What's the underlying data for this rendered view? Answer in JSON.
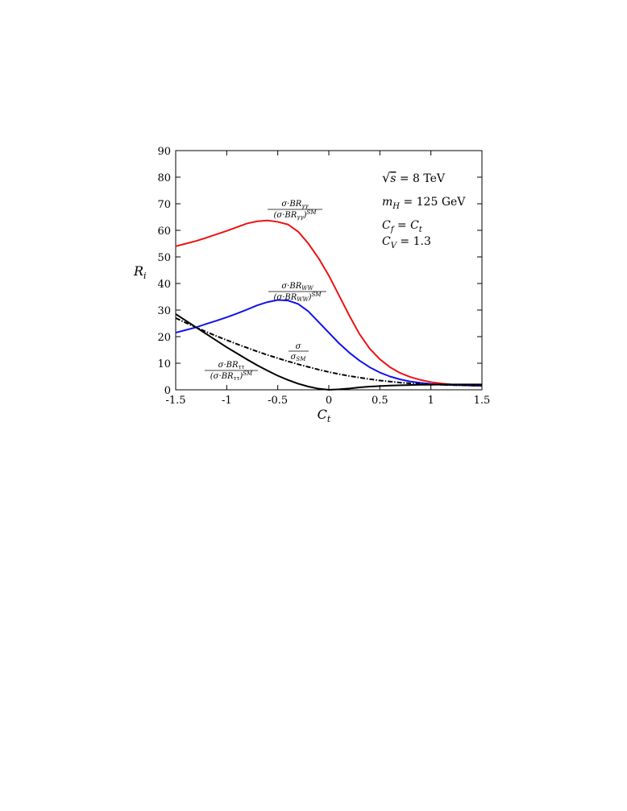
{
  "chart_data": {
    "type": "line",
    "title": "",
    "xlabel": "C_t",
    "ylabel": "R_i",
    "xlim": [
      -1.5,
      1.5
    ],
    "ylim": [
      0,
      90
    ],
    "x_ticks": [
      "-1.5",
      "-1",
      "-0.5",
      "0",
      "0.5",
      "1",
      "1.5"
    ],
    "y_ticks": [
      "0",
      "10",
      "20",
      "30",
      "40",
      "50",
      "60",
      "70",
      "80",
      "90"
    ],
    "grid": false,
    "annotations": [
      "√s = 8 TeV",
      "m_H = 125 GeV",
      "C_f = C_t",
      "C_V = 1.3"
    ],
    "series": [
      {
        "name": "σ·BR_γγ / (σ·BR_γγ)^SM",
        "color": "#ee1111",
        "style": "solid",
        "x": [
          -1.5,
          -1.4,
          -1.3,
          -1.2,
          -1.1,
          -1.0,
          -0.9,
          -0.8,
          -0.7,
          -0.6,
          -0.5,
          -0.4,
          -0.3,
          -0.2,
          -0.1,
          0.0,
          0.1,
          0.2,
          0.3,
          0.4,
          0.5,
          0.6,
          0.7,
          0.8,
          0.9,
          1.0,
          1.1,
          1.2,
          1.3,
          1.4,
          1.5
        ],
        "values": [
          54,
          55,
          56,
          57.2,
          58.5,
          59.8,
          61.2,
          62.6,
          63.4,
          63.7,
          63.2,
          62.2,
          59.5,
          55,
          49.5,
          43,
          35.5,
          28,
          21,
          15.5,
          11.5,
          8.5,
          6.3,
          4.8,
          3.7,
          2.9,
          2.4,
          2.0,
          1.8,
          1.6,
          1.5
        ]
      },
      {
        "name": "σ·BR_WW / (σ·BR_WW)^SM",
        "color": "#1111ee",
        "style": "solid",
        "x": [
          -1.5,
          -1.4,
          -1.3,
          -1.2,
          -1.1,
          -1.0,
          -0.9,
          -0.8,
          -0.7,
          -0.6,
          -0.5,
          -0.4,
          -0.3,
          -0.2,
          -0.1,
          0.0,
          0.1,
          0.2,
          0.3,
          0.4,
          0.5,
          0.6,
          0.7,
          0.8,
          0.9,
          1.0,
          1.1,
          1.2,
          1.3,
          1.4,
          1.5
        ],
        "values": [
          21.5,
          22.5,
          23.5,
          24.8,
          26,
          27.3,
          28.7,
          30.2,
          31.8,
          33,
          33.8,
          33.6,
          32.3,
          29.5,
          25.5,
          21.5,
          17.5,
          14,
          11,
          8.5,
          6.5,
          5.0,
          3.9,
          3.1,
          2.6,
          2.2,
          1.9,
          1.8,
          1.7,
          1.6,
          1.5
        ]
      },
      {
        "name": "σ / σ_SM",
        "color": "#000000",
        "style": "dashdot",
        "x": [
          -1.5,
          -1.4,
          -1.3,
          -1.2,
          -1.1,
          -1.0,
          -0.9,
          -0.8,
          -0.7,
          -0.6,
          -0.5,
          -0.4,
          -0.3,
          -0.2,
          -0.1,
          0.0,
          0.1,
          0.2,
          0.3,
          0.4,
          0.5,
          0.6,
          0.7,
          0.8,
          0.9,
          1.0,
          1.1,
          1.2,
          1.3,
          1.4,
          1.5
        ],
        "values": [
          27,
          25.2,
          23.5,
          21.8,
          20.2,
          18.7,
          17.2,
          15.8,
          14.4,
          13.1,
          11.9,
          10.7,
          9.6,
          8.6,
          7.6,
          6.7,
          5.9,
          5.2,
          4.6,
          4.0,
          3.5,
          3.1,
          2.7,
          2.4,
          2.2,
          2.0,
          1.9,
          1.8,
          1.7,
          1.65,
          1.6
        ]
      },
      {
        "name": "σ·BR_ττ / (σ·BR_ττ)^SM",
        "color": "#000000",
        "style": "solid",
        "x": [
          -1.5,
          -1.4,
          -1.3,
          -1.2,
          -1.1,
          -1.0,
          -0.9,
          -0.8,
          -0.7,
          -0.6,
          -0.5,
          -0.4,
          -0.3,
          -0.2,
          -0.1,
          0.0,
          0.1,
          0.2,
          0.3,
          0.4,
          0.5,
          0.6,
          0.7,
          0.8,
          0.9,
          1.0,
          1.1,
          1.2,
          1.3,
          1.4,
          1.5
        ],
        "values": [
          28.5,
          26,
          23.5,
          21,
          18.5,
          16,
          13.7,
          11.4,
          9.2,
          7.2,
          5.3,
          3.7,
          2.3,
          1.2,
          0.4,
          0.0,
          0.2,
          0.5,
          0.9,
          1.2,
          1.4,
          1.6,
          1.7,
          1.8,
          1.9,
          1.9,
          2.0,
          2.0,
          2.0,
          2.0,
          2.0
        ]
      }
    ]
  }
}
